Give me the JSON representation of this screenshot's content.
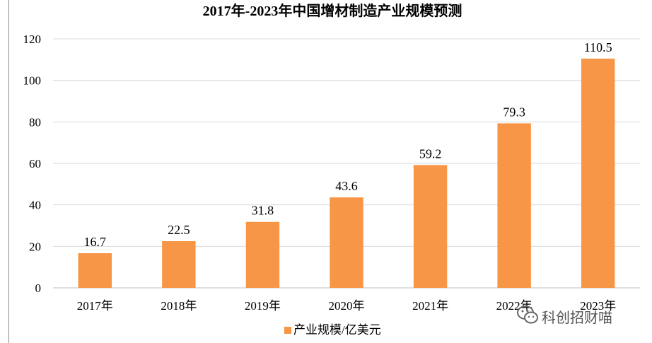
{
  "chart_data": {
    "type": "bar",
    "title": "2017年-2023年中国增材制造产业规模预测",
    "categories": [
      "2017年",
      "2018年",
      "2019年",
      "2020年",
      "2021年",
      "2022年",
      "2023年"
    ],
    "series": [
      {
        "name": "产业规模/亿美元",
        "values": [
          16.7,
          22.5,
          31.8,
          43.6,
          59.2,
          79.3,
          110.5
        ],
        "color": "#f79646"
      }
    ],
    "ylim": [
      0,
      120
    ],
    "yticks": [
      0,
      20,
      40,
      60,
      80,
      100,
      120
    ],
    "data_labels": [
      "16.7",
      "22.5",
      "31.8",
      "43.6",
      "59.2",
      "79.3",
      "110.5"
    ],
    "grid": true,
    "legend_position": "bottom"
  },
  "watermark": {
    "text": "科创招财喵",
    "icon": "wechat-icon"
  }
}
